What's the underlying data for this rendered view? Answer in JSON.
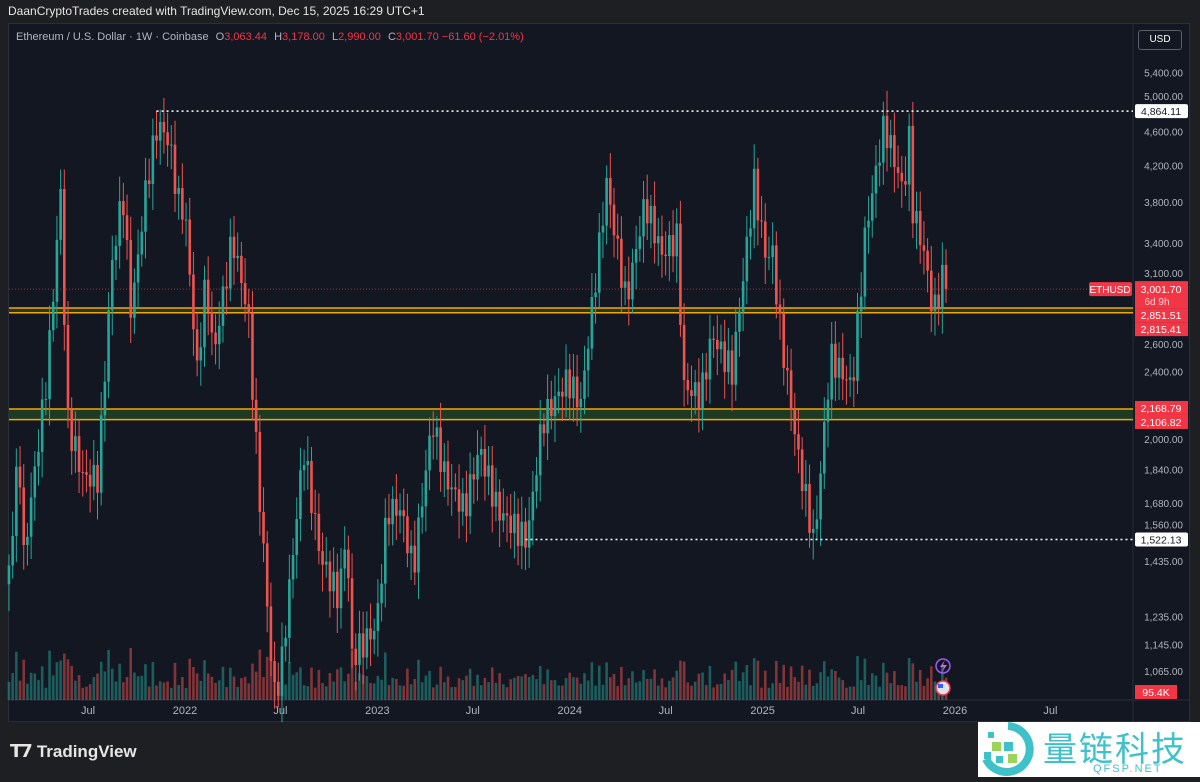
{
  "header": {
    "credit": "DaanCryptoTrades created with TradingView.com, Dec 15, 2025 16:29 UTC+1"
  },
  "legend": {
    "symbol": "Ethereum / U.S. Dollar · 1W · Coinbase",
    "o_label": "O",
    "o": "3,063.44",
    "h_label": "H",
    "h": "3,178.00",
    "l_label": "L",
    "l": "2,990.00",
    "c_label": "C",
    "c": "3,001.70",
    "change": "−61.60 (−2.01%)"
  },
  "currency_button": "USD",
  "colors": {
    "up": "#26a69a",
    "down": "#ef5350",
    "zone_line": "#f7a600",
    "zone_fill": "#1f3a22",
    "background": "#131722",
    "label_red": "#f23645"
  },
  "chart_data": {
    "type": "candlestick",
    "scale": "log",
    "interval": "1W",
    "ylim": [
      1000,
      5700
    ],
    "y_ticks": [
      5400,
      5000,
      4600,
      4200,
      3800,
      3400,
      3100,
      2600,
      2400,
      2000,
      1840,
      1680,
      1560,
      1435,
      1235,
      1145,
      1065
    ],
    "y_tick_labels": [
      "5,400.00",
      "5,000.00",
      "4,600.00",
      "4,200.00",
      "3,800.00",
      "3,400.00",
      "3,100.00",
      "2,600.00",
      "2,400.00",
      "2,000.00",
      "1,840.00",
      "1,680.00",
      "1,560.00",
      "1,435.00",
      "1,235.00",
      "1,145.00",
      "1,065.00"
    ],
    "x_ticks": [
      {
        "date": "2021-07-01",
        "label": "Jul"
      },
      {
        "date": "2022-01-01",
        "label": "2022"
      },
      {
        "date": "2022-07-01",
        "label": "Jul"
      },
      {
        "date": "2023-01-01",
        "label": "2023"
      },
      {
        "date": "2023-07-01",
        "label": "Jul"
      },
      {
        "date": "2024-01-01",
        "label": "2024"
      },
      {
        "date": "2024-07-01",
        "label": "Jul"
      },
      {
        "date": "2025-01-01",
        "label": "2025"
      },
      {
        "date": "2025-07-01",
        "label": "Jul"
      },
      {
        "date": "2026-01-01",
        "label": "2026"
      },
      {
        "date": "2026-07-01",
        "label": "Jul"
      }
    ],
    "price_key_points": [
      [
        "2021-02-01",
        1400
      ],
      [
        "2021-02-20",
        1950
      ],
      [
        "2021-03-01",
        1450
      ],
      [
        "2021-04-15",
        2400
      ],
      [
        "2021-05-10",
        3900
      ],
      [
        "2021-05-23",
        2100
      ],
      [
        "2021-06-22",
        1800
      ],
      [
        "2021-07-20",
        1800
      ],
      [
        "2021-08-15",
        3200
      ],
      [
        "2021-09-05",
        3900
      ],
      [
        "2021-09-21",
        2800
      ],
      [
        "2021-10-20",
        4000
      ],
      [
        "2021-11-10",
        4700
      ],
      [
        "2021-12-01",
        4500
      ],
      [
        "2021-12-20",
        3800
      ],
      [
        "2022-01-01",
        3700
      ],
      [
        "2022-01-24",
        2400
      ],
      [
        "2022-02-10",
        3100
      ],
      [
        "2022-02-24",
        2500
      ],
      [
        "2022-04-01",
        3450
      ],
      [
        "2022-05-01",
        2800
      ],
      [
        "2022-05-15",
        2000
      ],
      [
        "2022-06-18",
        1000
      ],
      [
        "2022-07-01",
        1050
      ],
      [
        "2022-08-14",
        1950
      ],
      [
        "2022-09-15",
        1450
      ],
      [
        "2022-10-20",
        1300
      ],
      [
        "2022-11-05",
        1600
      ],
      [
        "2022-11-10",
        1100
      ],
      [
        "2022-12-30",
        1200
      ],
      [
        "2023-01-20",
        1650
      ],
      [
        "2023-02-15",
        1650
      ],
      [
        "2023-03-10",
        1400
      ],
      [
        "2023-04-15",
        2100
      ],
      [
        "2023-05-10",
        1800
      ],
      [
        "2023-06-15",
        1650
      ],
      [
        "2023-07-14",
        1950
      ],
      [
        "2023-08-17",
        1650
      ],
      [
        "2023-10-12",
        1520
      ],
      [
        "2023-11-10",
        2100
      ],
      [
        "2023-12-28",
        2350
      ],
      [
        "2024-01-22",
        2200
      ],
      [
        "2024-03-11",
        4000
      ],
      [
        "2024-04-17",
        2900
      ],
      [
        "2024-05-23",
        3800
      ],
      [
        "2024-06-24",
        3300
      ],
      [
        "2024-07-22",
        3450
      ],
      [
        "2024-08-05",
        2300
      ],
      [
        "2024-09-06",
        2250
      ],
      [
        "2024-09-27",
        2650
      ],
      [
        "2024-11-04",
        2400
      ],
      [
        "2024-12-16",
        4000
      ],
      [
        "2025-01-06",
        3300
      ],
      [
        "2025-01-20",
        3300
      ],
      [
        "2025-02-03",
        2700
      ],
      [
        "2025-03-10",
        1900
      ],
      [
        "2025-04-09",
        1500
      ],
      [
        "2025-05-10",
        2500
      ],
      [
        "2025-06-20",
        2300
      ],
      [
        "2025-07-15",
        3500
      ],
      [
        "2025-08-20",
        4700
      ],
      [
        "2025-09-25",
        3900
      ],
      [
        "2025-10-06",
        4500
      ],
      [
        "2025-10-10",
        3800
      ],
      [
        "2025-11-04",
        3300
      ],
      [
        "2025-11-21",
        2800
      ],
      [
        "2025-12-08",
        3100
      ],
      [
        "2025-12-15",
        3001.7
      ]
    ],
    "levels": [
      {
        "kind": "dotted",
        "value": 4864.11,
        "label": "4,864.11",
        "from": "2021-11-08"
      },
      {
        "kind": "dotted",
        "value": 1522.13,
        "label": "1,522.13",
        "from": "2023-10-09"
      }
    ],
    "zones": [
      {
        "top": 2851.51,
        "bottom": 2815.41,
        "top_label": "2,851.51",
        "bottom_label": "2,815.41"
      },
      {
        "top": 2168.79,
        "bottom": 2106.82,
        "top_label": "2,168.79",
        "bottom_label": "2,106.82"
      }
    ],
    "last_price": {
      "symbol": "ETHUSD",
      "value": 3001.7,
      "label": "3,001.70",
      "countdown": "6d 9h"
    },
    "volume_label": "95.4K"
  },
  "branding": {
    "logo": "TradingView",
    "watermark_cn": "量链科技",
    "watermark_en": "QFSP.NET"
  }
}
